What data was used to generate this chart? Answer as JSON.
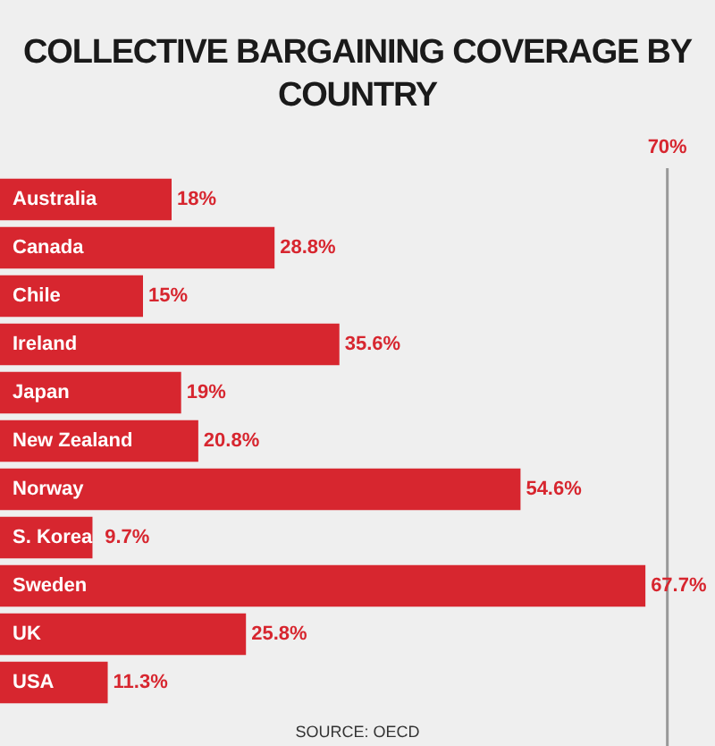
{
  "chart_data": {
    "type": "bar",
    "orientation": "horizontal",
    "title": "COLLECTIVE BARGAINING COVERAGE BY COUNTRY",
    "categories": [
      "Australia",
      "Canada",
      "Chile",
      "Ireland",
      "Japan",
      "New Zealand",
      "Norway",
      "S. Korea",
      "Sweden",
      "UK",
      "USA"
    ],
    "values": [
      18,
      28.8,
      15,
      35.6,
      19,
      20.8,
      54.6,
      9.7,
      67.7,
      25.8,
      11.3
    ],
    "value_labels": [
      "18%",
      "28.8%",
      "15%",
      "35.6%",
      "19%",
      "20.8%",
      "54.6%",
      "9.7%",
      "67.7%",
      "25.8%",
      "11.3%"
    ],
    "color": "#d7262f",
    "xlim": [
      0,
      75
    ],
    "tick_labels": false,
    "grid": false,
    "legend": false,
    "ref_lines": [
      {
        "axis": "x",
        "value": 70,
        "label": "70%",
        "color": "#999999"
      }
    ],
    "annotations": [
      "SOURCE: OECD"
    ]
  }
}
